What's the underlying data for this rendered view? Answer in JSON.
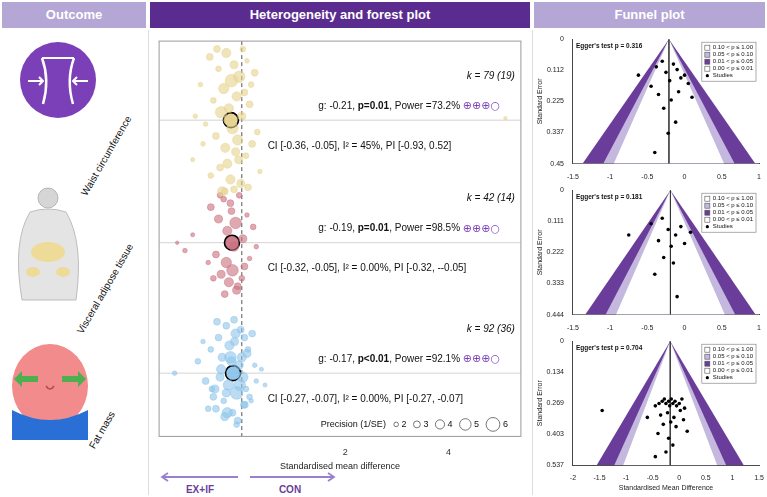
{
  "headers": [
    "Outcome",
    "Heterogeneity and forest plot",
    "Funnel plot"
  ],
  "chart_data": [
    {
      "type": "bubble",
      "x_label": "Standardised mean difference",
      "xlim": [
        -1.6,
        5.4
      ],
      "xticks": [
        2,
        4
      ],
      "ylim": [
        0,
        10
      ],
      "tick_labels": "x",
      "grid": false,
      "null_line": 0,
      "direction_labels": {
        "left": "EX+IF",
        "right": "CON"
      },
      "precision_legend": {
        "title": "Precision (1/SE)",
        "values": [
          2,
          3,
          4,
          5,
          6
        ]
      },
      "series": [
        {
          "name": "Waist circumference",
          "color": "#e6d28e",
          "x": [
            -0.62,
            -0.45,
            -0.3,
            -0.15,
            -0.05,
            0.1,
            0.25,
            -0.8,
            -0.35,
            -0.2,
            0.05,
            -0.55,
            -0.1,
            0.15,
            -0.4,
            -0.25,
            0.0,
            -0.7,
            -0.18,
            0.3,
            -0.5,
            -0.08,
            0.2,
            -0.32,
            -0.12,
            -0.95,
            0.08,
            -0.28,
            -0.42,
            0.35,
            -0.6,
            -0.22,
            -0.02,
            0.12,
            -0.38,
            -0.15,
            -0.75,
            0.02,
            -0.48,
            -0.26,
            0.18,
            -0.06,
            -0.33,
            5.1,
            -0.9
          ],
          "y": [
            9.6,
            9.3,
            9.7,
            9.4,
            9.1,
            9.5,
            9.2,
            8.9,
            8.8,
            9.0,
            8.7,
            8.5,
            8.6,
            8.4,
            8.2,
            8.3,
            8.1,
            7.9,
            7.8,
            7.7,
            7.6,
            7.5,
            7.4,
            7.3,
            7.2,
            7.0,
            7.1,
            6.9,
            6.8,
            6.7,
            6.6,
            6.5,
            6.4,
            6.3,
            6.2,
            6.25,
            7.4,
            9.8,
            9.8,
            8.0,
            8.9,
            7.0,
            6.2,
            8.05,
            8.1
          ],
          "precision": [
            3,
            2.5,
            4,
            3.5,
            5,
            2,
            3,
            2,
            4.5,
            5.5,
            3,
            2.5,
            4,
            3,
            5,
            4,
            3.5,
            2,
            5,
            2.5,
            3,
            4.5,
            3,
            4,
            3.5,
            1.8,
            2.5,
            4,
            3,
            2,
            2.5,
            4,
            3.5,
            3,
            4,
            3,
            2,
            2.5,
            3,
            4,
            2.5,
            3.5,
            3,
            1.5,
            2
          ],
          "pooled": {
            "g": -0.21,
            "y": 8.0
          },
          "k_label": "k = 79 (19)",
          "stats_line": [
            "g: -0.21, ",
            "p=0.01",
            ", Power =73.2% ",
            "⊕⊕⊕○"
          ],
          "ci_line": "CI [-0.36, -0.05], I² = 45%, PI [-0.93, 0.52]"
        },
        {
          "name": "Visceral adipose tissue",
          "color": "#c96f7f",
          "x": [
            -1.25,
            -1.1,
            -0.95,
            -0.6,
            -0.45,
            -0.35,
            -0.28,
            -0.2,
            -0.12,
            -0.05,
            0.02,
            0.1,
            0.22,
            -0.5,
            -0.3,
            -0.15,
            0.05,
            -0.4,
            -0.25,
            -0.18,
            -0.08,
            0.15,
            -0.55,
            -0.33,
            -0.1,
            0.0,
            -0.22,
            -0.42,
            0.28,
            -0.65
          ],
          "y": [
            4.9,
            4.7,
            5.1,
            5.8,
            5.5,
            6.0,
            5.2,
            5.7,
            5.4,
            6.1,
            5.0,
            5.6,
            5.3,
            4.6,
            4.4,
            4.8,
            4.3,
            4.1,
            3.9,
            4.2,
            3.8,
            4.5,
            4.0,
            3.6,
            3.7,
            4.0,
            5.9,
            6.1,
            4.8,
            4.4
          ],
          "precision": [
            1.5,
            2,
            1.8,
            3,
            3.5,
            2.5,
            4,
            3,
            5,
            2.5,
            3.5,
            2,
            2.5,
            3,
            4.5,
            4,
            3,
            3.5,
            4,
            5,
            3,
            2,
            2.5,
            3,
            3.5,
            2.5,
            3,
            2.5,
            2,
            2
          ],
          "pooled": {
            "g": -0.19,
            "y": 4.9
          },
          "k_label": "k = 42 (14)",
          "stats_line": [
            "g: -0.19, ",
            "p=0.01",
            ", Power =98.5% ",
            "⊕⊕⊕○"
          ],
          "ci_line": "CI [-0.32, -0.05], I² = 0.00%, PI [-0.32, --0.05]"
        },
        {
          "name": "Fat mass",
          "color": "#8ec4ea",
          "x": [
            -1.3,
            -0.85,
            -0.7,
            -0.6,
            -0.52,
            -0.45,
            -0.4,
            -0.35,
            -0.3,
            -0.26,
            -0.22,
            -0.18,
            -0.14,
            -0.1,
            -0.06,
            -0.02,
            0.02,
            0.06,
            0.1,
            0.15,
            0.2,
            0.28,
            0.38,
            -0.65,
            -0.48,
            -0.33,
            -0.24,
            -0.16,
            -0.08,
            0.0,
            0.08,
            0.18,
            -0.55,
            -0.42,
            -0.28,
            -0.12,
            0.04,
            0.12,
            -0.38,
            -0.2,
            -0.04,
            0.25,
            -0.75,
            -0.5,
            -0.3,
            -0.1,
            0.05,
            -0.58,
            -0.15,
            0.45
          ],
          "y": [
            1.6,
            1.9,
            1.4,
            2.2,
            1.2,
            2.5,
            1.7,
            0.9,
            2.8,
            1.3,
            2.0,
            0.6,
            2.4,
            1.1,
            1.8,
            2.7,
            1.5,
            0.8,
            2.1,
            1.0,
            2.6,
            1.4,
            1.7,
            0.7,
            2.9,
            0.5,
            2.3,
            1.6,
            0.4,
            2.0,
            1.2,
            0.9,
            1.0,
            1.5,
            0.6,
            2.6,
            0.8,
            2.2,
            2.0,
            1.9,
            1.3,
            1.8,
            2.4,
            0.7,
            1.1,
            0.3,
            2.5,
            1.2,
            2.95,
            1.3
          ],
          "precision": [
            2,
            2.5,
            3,
            2.5,
            3.5,
            3,
            4,
            2.5,
            3,
            4.5,
            5,
            3,
            3.5,
            5.5,
            4,
            3,
            4.5,
            3,
            3.5,
            2.5,
            3,
            2,
            1.8,
            2.5,
            3,
            3.5,
            4,
            5,
            3,
            4,
            2.5,
            2,
            3,
            3.5,
            4.5,
            4,
            3,
            2.5,
            3.5,
            4,
            5,
            2,
            2,
            3,
            3.5,
            2.5,
            3,
            2.5,
            3,
            1.8
          ],
          "pooled": {
            "g": -0.17,
            "y": 1.6
          },
          "k_label": "k = 92 (36)",
          "stats_line": [
            "g: -0.17, ",
            "p<0.01",
            ", Power =92.1% ",
            "⊕⊕⊕○"
          ],
          "ci_line": "CI [-0.27, -0.07], I² = 0.00%, PI [-0.27, -0.07]"
        }
      ]
    },
    {
      "type": "scatter",
      "annotation": "Egger's test p = 0.316",
      "y_label": "Standard Error",
      "xlim": [
        -1.5,
        1
      ],
      "xticks": [
        -1.5,
        -1,
        -0.5,
        0,
        0.5,
        1
      ],
      "ylim": [
        0,
        0.45
      ],
      "yticks": [
        0,
        0.112,
        0.225,
        0.337,
        0.45
      ],
      "grid": false,
      "center": -0.21,
      "contours": [
        {
          "label": "0.10 < p ≤ 1.00",
          "color": "#ffffff",
          "z": 1.645
        },
        {
          "label": "0.05 < p ≤ 0.10",
          "color": "#c4b8df",
          "z": 1.96
        },
        {
          "label": "0.01 < p ≤ 0.05",
          "color": "#6a3d9a",
          "z": 2.576
        },
        {
          "label": "0.00 < p ≤ 0.01",
          "color": "#ffffff",
          "z": null
        }
      ],
      "marker_label": "Studies",
      "color": "#000000",
      "marker": "circle",
      "x": [
        -0.62,
        -0.45,
        -0.38,
        -0.3,
        -0.25,
        -0.2,
        -0.15,
        -0.1,
        -0.05,
        0.0,
        0.05,
        -0.35,
        -0.18,
        -0.08,
        0.1,
        -0.28,
        -0.12,
        -0.4,
        -0.22
      ],
      "y": [
        0.13,
        0.17,
        0.1,
        0.08,
        0.12,
        0.15,
        0.09,
        0.11,
        0.14,
        0.13,
        0.16,
        0.2,
        0.22,
        0.19,
        0.21,
        0.25,
        0.3,
        0.41,
        0.34
      ]
    },
    {
      "type": "scatter",
      "annotation": "Egger's test p = 0.181",
      "y_label": "Standard Error",
      "xlim": [
        -1.5,
        1
      ],
      "xticks": [
        -1.5,
        -1,
        -0.5,
        0,
        0.5,
        1
      ],
      "ylim": [
        0,
        0.444
      ],
      "yticks": [
        0,
        0.111,
        0.222,
        0.333,
        0.444
      ],
      "grid": false,
      "center": -0.19,
      "contours": [
        {
          "label": "0.10 < p ≤ 1.00",
          "color": "#ffffff",
          "z": 1.645
        },
        {
          "label": "0.05 < p ≤ 0.10",
          "color": "#c4b8df",
          "z": 1.96
        },
        {
          "label": "0.01 < p ≤ 0.05",
          "color": "#6a3d9a",
          "z": 2.576
        },
        {
          "label": "0.00 < p ≤ 0.01",
          "color": "#ffffff",
          "z": null
        }
      ],
      "marker_label": "Studies",
      "color": "#000000",
      "marker": "circle",
      "x": [
        -0.75,
        -0.45,
        -0.35,
        -0.3,
        -0.22,
        -0.18,
        -0.12,
        -0.05,
        0.0,
        0.08,
        -0.28,
        -0.15,
        -0.4,
        -0.1
      ],
      "y": [
        0.16,
        0.12,
        0.18,
        0.1,
        0.14,
        0.2,
        0.16,
        0.13,
        0.19,
        0.15,
        0.24,
        0.26,
        0.3,
        0.38
      ]
    },
    {
      "type": "scatter",
      "annotation": "Egger's test p = 0.704",
      "x_label": "Standardised Mean Difference",
      "y_label": "Standard Error",
      "xlim": [
        -2,
        1.5
      ],
      "xticks": [
        -2,
        -1.5,
        -1,
        -0.5,
        0,
        0.5,
        1,
        1.5
      ],
      "ylim": [
        0,
        0.537
      ],
      "yticks": [
        0,
        0.134,
        0.269,
        0.403,
        0.537
      ],
      "grid": false,
      "center": -0.17,
      "contours": [
        {
          "label": "0.10 < p ≤ 1.00",
          "color": "#ffffff",
          "z": 1.645
        },
        {
          "label": "0.05 < p ≤ 0.10",
          "color": "#c4b8df",
          "z": 1.96
        },
        {
          "label": "0.01 < p ≤ 0.05",
          "color": "#6a3d9a",
          "z": 2.576
        },
        {
          "label": "0.00 < p ≤ 0.01",
          "color": "#ffffff",
          "z": null
        }
      ],
      "marker_label": "Studies",
      "color": "#000000",
      "marker": "circle",
      "x": [
        -1.45,
        -0.6,
        -0.45,
        -0.38,
        -0.32,
        -0.28,
        -0.25,
        -0.2,
        -0.18,
        -0.15,
        -0.12,
        -0.08,
        -0.05,
        0.0,
        0.05,
        0.1,
        -0.35,
        -0.22,
        -0.1,
        0.02,
        -0.3,
        -0.16,
        -0.06,
        0.08,
        -0.4,
        -0.2,
        -0.12,
        0.15,
        -0.25,
        -0.45
      ],
      "y": [
        0.3,
        0.33,
        0.28,
        0.27,
        0.26,
        0.25,
        0.27,
        0.26,
        0.28,
        0.25,
        0.27,
        0.26,
        0.28,
        0.27,
        0.25,
        0.29,
        0.32,
        0.31,
        0.33,
        0.3,
        0.36,
        0.35,
        0.37,
        0.34,
        0.4,
        0.42,
        0.45,
        0.39,
        0.48,
        0.5
      ]
    }
  ]
}
